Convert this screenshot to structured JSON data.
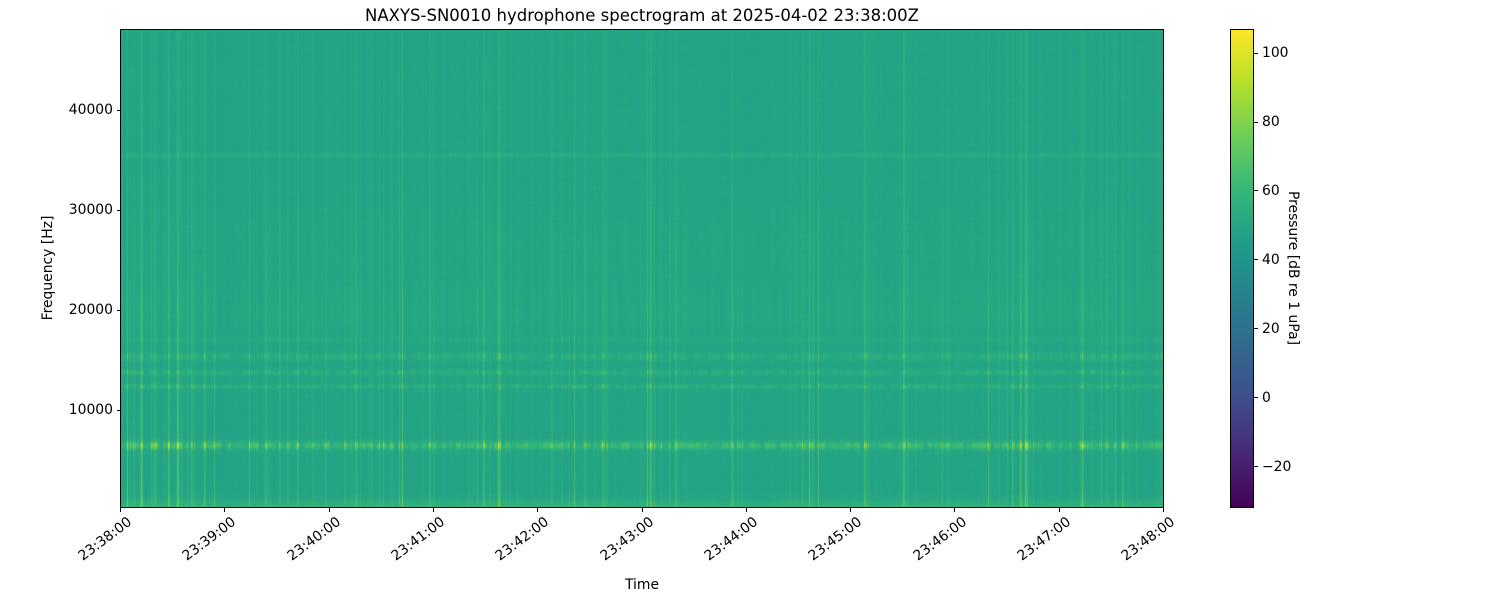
{
  "chart_data": {
    "type": "heatmap",
    "subtype": "spectrogram",
    "title": "NAXYS-SN0010 hydrophone spectrogram at 2025-04-02 23:38:00Z",
    "xlabel": "Time",
    "ylabel": "Frequency [Hz]",
    "colorbar_label": "Pressure [dB re 1 uPa]",
    "colormap": "viridis",
    "x_ticks": [
      "23:38:00",
      "23:39:00",
      "23:40:00",
      "23:41:00",
      "23:42:00",
      "23:43:00",
      "23:44:00",
      "23:45:00",
      "23:46:00",
      "23:47:00",
      "23:48:00"
    ],
    "x_span_seconds": 600,
    "y_ticks": [
      "10000",
      "20000",
      "30000",
      "40000"
    ],
    "y_tick_values": [
      10000,
      20000,
      30000,
      40000
    ],
    "y_range_hz": [
      0,
      48000
    ],
    "color_range_db": [
      -32,
      107
    ],
    "colorbar_ticks": [
      {
        "value": 100,
        "label": "100"
      },
      {
        "value": 80,
        "label": "80"
      },
      {
        "value": 60,
        "label": "60"
      },
      {
        "value": 40,
        "label": "40"
      },
      {
        "value": 20,
        "label": "20"
      },
      {
        "value": 0,
        "label": "0"
      },
      {
        "value": -20,
        "label": "−20"
      }
    ],
    "background_level_db": 49,
    "tonal_bands": [
      {
        "freq_hz": 500,
        "bandwidth_hz": 450,
        "boost_db": 8,
        "pulsed": false
      },
      {
        "freq_hz": 6500,
        "bandwidth_hz": 280,
        "boost_db": 27,
        "pulsed": true
      },
      {
        "freq_hz": 12400,
        "bandwidth_hz": 170,
        "boost_db": 12,
        "pulsed": true
      },
      {
        "freq_hz": 13800,
        "bandwidth_hz": 170,
        "boost_db": 11,
        "pulsed": true
      },
      {
        "freq_hz": 15400,
        "bandwidth_hz": 260,
        "boost_db": 11,
        "pulsed": true
      },
      {
        "freq_hz": 17100,
        "bandwidth_hz": 180,
        "boost_db": 5,
        "pulsed": true
      },
      {
        "freq_hz": 20000,
        "bandwidth_hz": 2200,
        "boost_db": 3.5,
        "pulsed": true
      },
      {
        "freq_hz": 26500,
        "bandwidth_hz": 2500,
        "boost_db": 2,
        "pulsed": true
      },
      {
        "freq_hz": 35500,
        "bandwidth_hz": 130,
        "boost_db": 5,
        "pulsed": false
      }
    ],
    "broadband_transients": {
      "description": "quasi-periodic vertical broadband click/stripe clusters, strongest below ~20 kHz",
      "peak_boost_db": 26,
      "typical_spacing_s": "1-8"
    },
    "viridis_stops": [
      [
        68,
        1,
        84
      ],
      [
        72,
        40,
        120
      ],
      [
        62,
        76,
        138
      ],
      [
        49,
        104,
        142
      ],
      [
        38,
        130,
        142
      ],
      [
        31,
        158,
        137
      ],
      [
        53,
        183,
        121
      ],
      [
        110,
        206,
        88
      ],
      [
        181,
        222,
        43
      ],
      [
        253,
        231,
        37
      ]
    ]
  }
}
